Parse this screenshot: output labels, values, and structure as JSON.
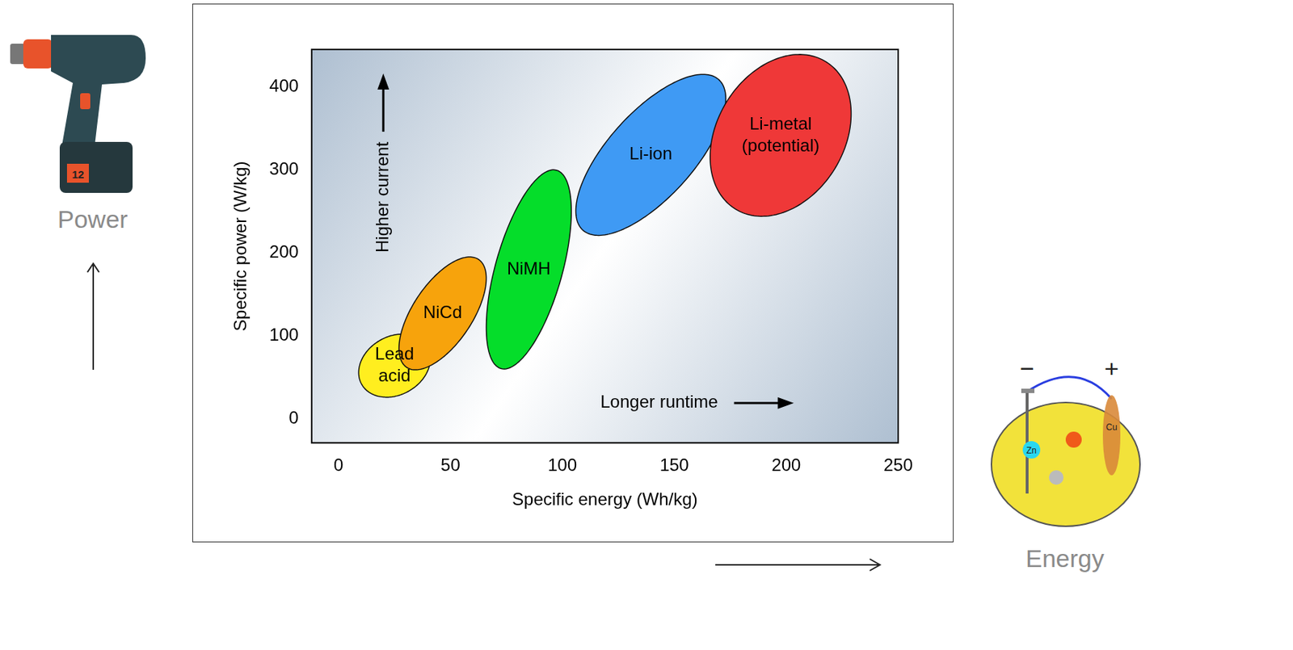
{
  "chart_data": {
    "type": "ellipse_regions",
    "x_label": "Specific energy (Wh/kg)",
    "y_label": "Specific power (W/kg)",
    "xlim": [
      -12,
      250
    ],
    "xticks": [
      0,
      50,
      100,
      150,
      200,
      250
    ],
    "ylim": [
      -29,
      445
    ],
    "yticks": [
      0,
      100,
      200,
      300,
      400
    ],
    "grid": false,
    "series": [
      {
        "name": "Lead acid",
        "color": "#ffee1f",
        "x_range": [
          9,
          41
        ],
        "y_range": [
          26,
          102
        ]
      },
      {
        "name": "NiCd",
        "color": "#f7a30c",
        "x_range": [
          27,
          66
        ],
        "y_range": [
          59,
          195
        ]
      },
      {
        "name": "NiMH",
        "color": "#05dd2a",
        "x_range": [
          66,
          104
        ],
        "y_range": [
          60,
          300
        ]
      },
      {
        "name": "Li-ion",
        "color": "#3f9af4",
        "x_range": [
          106,
          173
        ],
        "y_range": [
          221,
          415
        ]
      },
      {
        "name": "Li-metal (potential)",
        "color": "#ef3838",
        "x_range": [
          166,
          229
        ],
        "y_range": [
          244,
          439
        ]
      }
    ],
    "annotations": [
      {
        "text": "Higher current",
        "x": 20,
        "y": 267,
        "arrow": "up"
      },
      {
        "text": "Longer runtime",
        "x": 117,
        "y": 19,
        "arrow": "right"
      }
    ]
  },
  "figure": {
    "power_label": "Power",
    "energy_label": "Energy",
    "drill_text": "12",
    "lemon_texts": [
      "−",
      "+",
      "Zn",
      "Cu"
    ]
  }
}
